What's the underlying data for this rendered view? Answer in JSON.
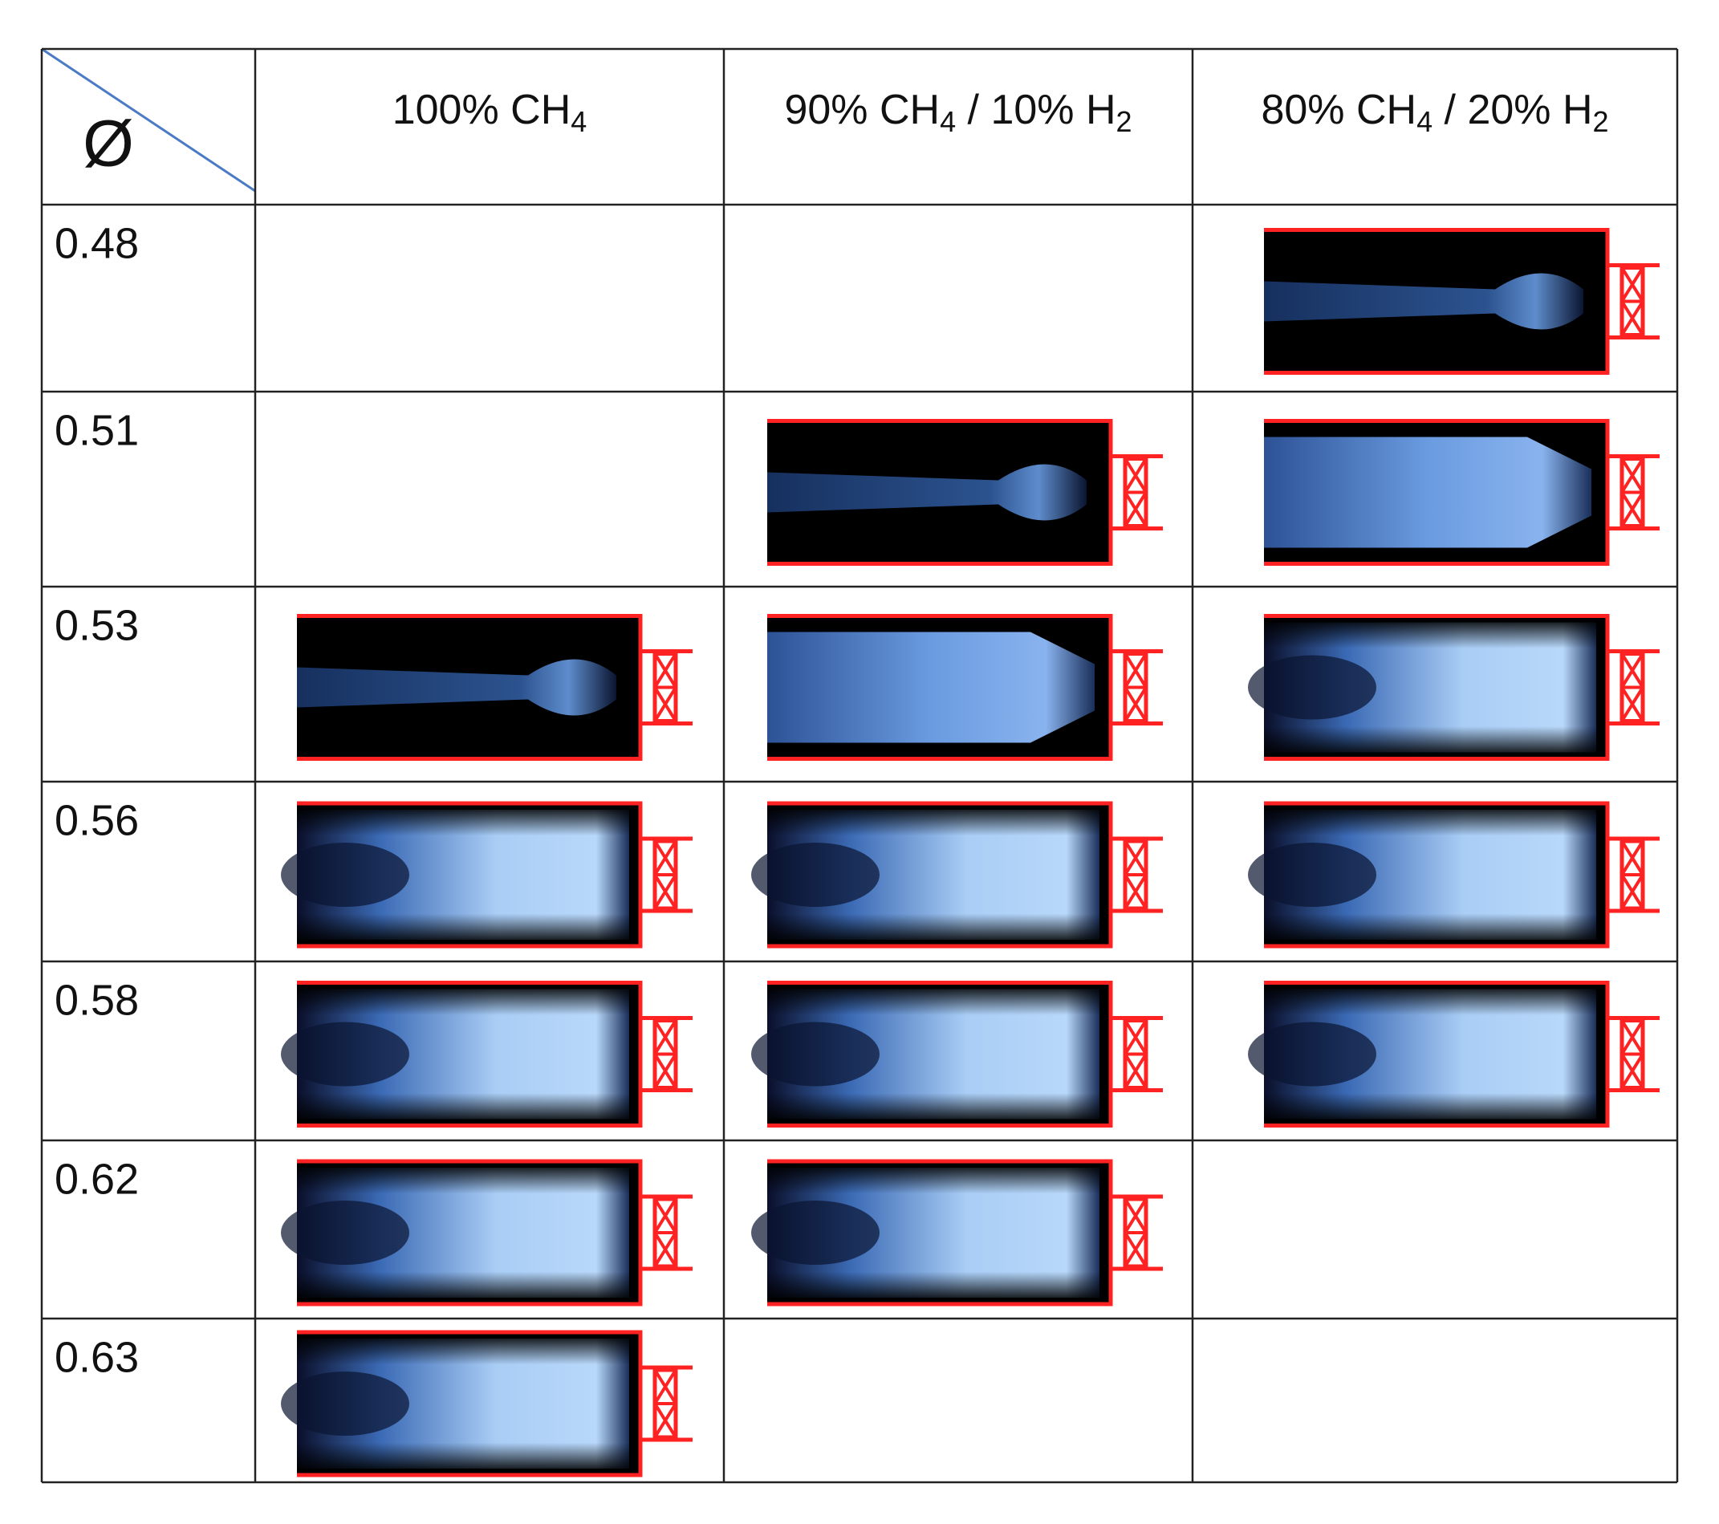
{
  "table": {
    "corner": "Ø",
    "columns": [
      [
        "100% CH",
        "4"
      ],
      [
        "90% CH",
        "4",
        " / 10% H",
        "2"
      ],
      [
        "80% CH",
        "4",
        " / 20% H",
        "2"
      ]
    ],
    "rows": [
      "0.48",
      "0.51",
      "0.53",
      "0.56",
      "0.58",
      "0.62",
      "0.63"
    ]
  }
}
